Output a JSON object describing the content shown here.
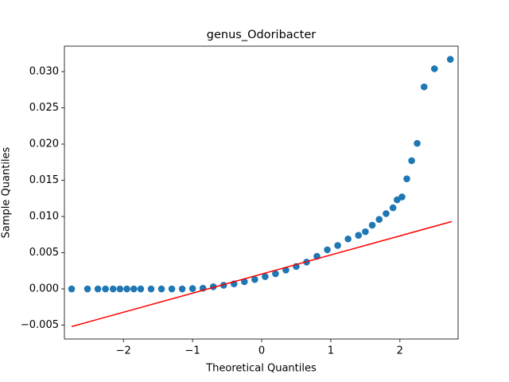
{
  "chart_data": {
    "type": "scatter",
    "title": "genus_Odoribacter",
    "x_label": "Theoretical Quantiles",
    "y_label": "Sample Quantiles",
    "xlim": [
      -2.854,
      2.842
    ],
    "ylim": [
      -0.00692,
      0.03352
    ],
    "xticks": [
      {
        "value": -2,
        "label": "−2"
      },
      {
        "value": -1,
        "label": "−1"
      },
      0,
      1,
      2
    ],
    "yticks": [
      {
        "value": -0.005,
        "label": "−0.005"
      },
      {
        "value": 0,
        "label": "0.000"
      },
      {
        "value": 0.005,
        "label": "0.005"
      },
      {
        "value": 0.01,
        "label": "0.010"
      },
      {
        "value": 0.015,
        "label": "0.015"
      },
      {
        "value": 0.02,
        "label": "0.020"
      },
      {
        "value": 0.025,
        "label": "0.025"
      },
      {
        "value": 0.03,
        "label": "0.030"
      }
    ],
    "series": [
      {
        "type": "scatter",
        "color": "#1f77b4",
        "x": [
          -2.75,
          -2.52,
          -2.37,
          -2.26,
          -2.15,
          -2.05,
          -1.95,
          -1.85,
          -1.75,
          -1.6,
          -1.45,
          -1.3,
          -1.15,
          -1.0,
          -0.85,
          -0.7,
          -0.55,
          -0.4,
          -0.25,
          -0.1,
          0.05,
          0.2,
          0.35,
          0.5,
          0.65,
          0.8,
          0.95,
          1.1,
          1.25,
          1.4,
          1.5,
          1.6,
          1.7,
          1.8,
          1.9,
          1.96,
          2.03,
          2.1,
          2.17,
          2.25,
          2.35,
          2.5,
          2.73
        ],
        "values": [
          0,
          0,
          0,
          0,
          0,
          0,
          0,
          0,
          0,
          0,
          0,
          0,
          0,
          5e-05,
          0.0001,
          0.0003,
          0.0005,
          0.0007,
          0.001,
          0.0013,
          0.0017,
          0.0021,
          0.0026,
          0.0031,
          0.0037,
          0.0045,
          0.0054,
          0.006,
          0.0069,
          0.0074,
          0.0079,
          0.0088,
          0.0096,
          0.0104,
          0.0112,
          0.0123,
          0.0127,
          0.0152,
          0.0177,
          0.0201,
          0.0279,
          0.0304,
          0.0317
        ]
      },
      {
        "type": "line",
        "color": "#ff0000",
        "x": [
          -2.75,
          2.75
        ],
        "values": [
          -0.0052,
          0.0093
        ]
      }
    ]
  }
}
